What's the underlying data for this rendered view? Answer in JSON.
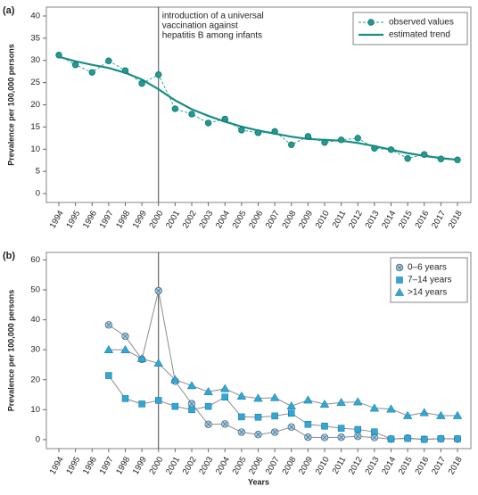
{
  "chart_data": [
    {
      "type": "line",
      "panel_label": "(a)",
      "y_label": "Prevalence per 100,000 persons",
      "annotation": [
        "introduction of a universal",
        "vaccination against",
        "hepatitis B among infants"
      ],
      "vline": "2000",
      "categories": [
        "1994",
        "1995",
        "1996",
        "1997",
        "1998",
        "1999",
        "2000",
        "2001",
        "2002",
        "2003",
        "2004",
        "2005",
        "2006",
        "2007",
        "2008",
        "2009",
        "2010",
        "2011",
        "2012",
        "2013",
        "2014",
        "2015",
        "2016",
        "2017",
        "2018"
      ],
      "ylim": [
        -2,
        42
      ],
      "yticks": [
        0,
        5,
        10,
        15,
        20,
        25,
        30,
        35,
        40
      ],
      "legend": "upper right",
      "series": [
        {
          "name": "observed values",
          "color": "#1f9c92",
          "marker": "circle",
          "line": "dashed",
          "values": [
            31.2,
            29,
            27.3,
            29.9,
            27.7,
            24.8,
            26.8,
            19.1,
            17.9,
            15.9,
            16.8,
            14.3,
            13.7,
            14.0,
            11.0,
            12.9,
            11.5,
            12.1,
            12.5,
            10.2,
            9.9,
            7.9,
            8.8,
            7.8,
            7.6
          ]
        },
        {
          "name": "estimated trend",
          "color": "#1a8e84",
          "marker": "none",
          "line": "solid",
          "values": [
            30.8,
            29.8,
            29.0,
            28.3,
            27.2,
            25.7,
            23.5,
            21.0,
            19.0,
            17.5,
            16.2,
            15.1,
            14.2,
            13.5,
            12.8,
            12.3,
            12.1,
            11.9,
            11.4,
            10.7,
            9.9,
            9.1,
            8.5,
            8.0,
            7.6
          ]
        }
      ]
    },
    {
      "type": "line",
      "panel_label": "(b)",
      "y_label": "Prevalence per 100,000 persons",
      "x_label": "Years",
      "vline": "2000",
      "line_color": "#8c8c8c",
      "categories": [
        "1994",
        "1995",
        "1996",
        "1997",
        "1998",
        "1999",
        "2000",
        "2001",
        "2002",
        "2003",
        "2004",
        "2005",
        "2006",
        "2007",
        "2008",
        "2009",
        "2010",
        "2011",
        "2012",
        "2013",
        "2014",
        "2015",
        "2016",
        "2017",
        "2018"
      ],
      "ylim": [
        -3,
        62.5
      ],
      "yticks": [
        0,
        10,
        20,
        30,
        40,
        50,
        60
      ],
      "legend": "upper right",
      "series": [
        {
          "name": "0–6 years",
          "color": "#a9d7ee",
          "marker": "crossed-circle",
          "line": "solid",
          "values": [
            null,
            null,
            null,
            38.3,
            34.5,
            26.8,
            49.7,
            19.5,
            12,
            5.1,
            5.2,
            2.5,
            1.7,
            2.5,
            4.2,
            0.8,
            0.7,
            0.8,
            1.1,
            0.7,
            0.2,
            0.5,
            0.1,
            0.3,
            0.2
          ]
        },
        {
          "name": "7–14 years",
          "color": "#2ea8d8",
          "marker": "square",
          "line": "solid",
          "values": [
            null,
            null,
            null,
            21.4,
            13.7,
            11.9,
            13.1,
            11.1,
            10,
            11.1,
            14.2,
            7.6,
            7.5,
            7.9,
            8.8,
            5.1,
            4.5,
            3.8,
            3.4,
            2.6,
            0.2,
            0.4,
            0.1,
            0.3,
            0.3
          ]
        },
        {
          "name": ">14 years",
          "color": "#2ea8d8",
          "marker": "triangle",
          "line": "solid",
          "values": [
            null,
            null,
            null,
            30,
            30,
            27,
            25.5,
            20,
            18,
            16,
            17,
            14.5,
            13.8,
            14,
            11.2,
            13.2,
            11.8,
            12.4,
            12.6,
            10.5,
            10.2,
            8,
            9,
            8,
            8
          ]
        }
      ]
    }
  ]
}
